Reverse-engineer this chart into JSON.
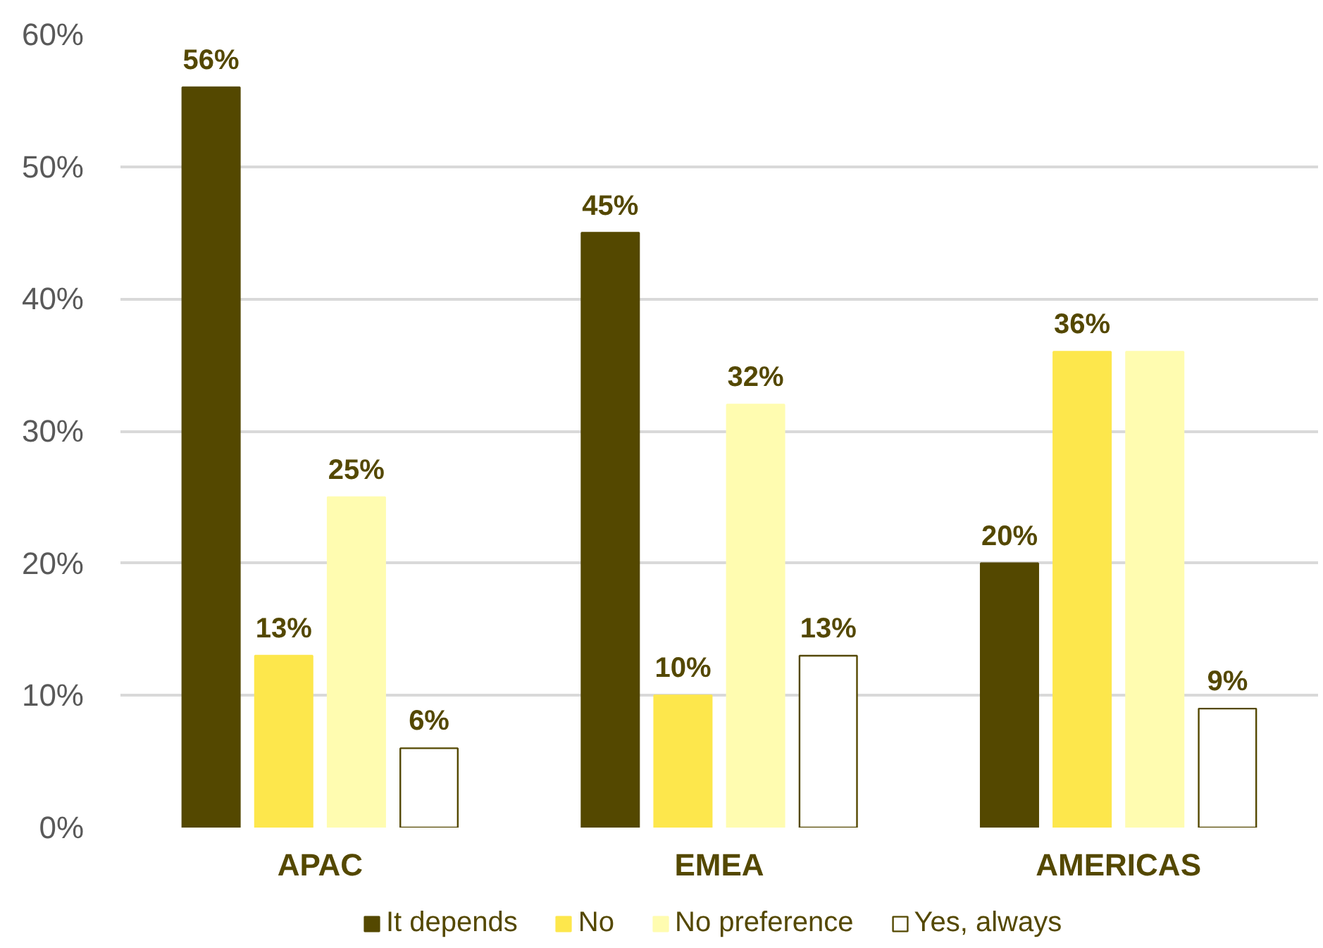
{
  "chart_data": {
    "type": "bar",
    "categories": [
      "APAC",
      "EMEA",
      "AMERICAS"
    ],
    "series": [
      {
        "name": "It depends",
        "color": "#544800",
        "values": [
          56,
          45,
          20
        ],
        "value_labels": [
          "56%",
          "45%",
          "20%"
        ]
      },
      {
        "name": "No",
        "color": "#fde74c",
        "values": [
          13,
          10,
          36
        ],
        "value_labels": [
          "13%",
          "10%",
          "36%"
        ]
      },
      {
        "name": "No preference",
        "color": "#fffcb0",
        "values": [
          25,
          32,
          36
        ],
        "value_labels": [
          "25%",
          "32%",
          null
        ]
      },
      {
        "name": "Yes, always",
        "color": "#ffffff",
        "values": [
          6,
          13,
          9
        ],
        "value_labels": [
          "6%",
          "13%",
          "9%"
        ]
      }
    ],
    "ylim": [
      0,
      60
    ],
    "yticks": [
      {
        "value": 0,
        "label": "0%"
      },
      {
        "value": 10,
        "label": "10%"
      },
      {
        "value": 20,
        "label": "20%"
      },
      {
        "value": 30,
        "label": "30%"
      },
      {
        "value": 40,
        "label": "40%"
      },
      {
        "value": 50,
        "label": "50%"
      },
      {
        "value": 60,
        "label": "60%"
      }
    ],
    "grid": "y",
    "legend": "bottom"
  }
}
